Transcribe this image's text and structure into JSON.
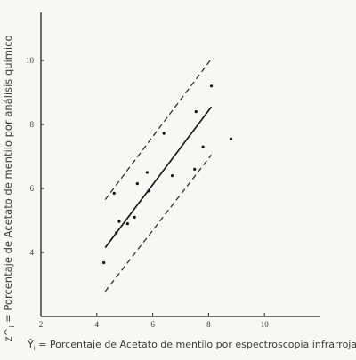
{
  "chart_data": {
    "type": "scatter",
    "title": "",
    "xlabel": {
      "prefix": "Ŷ",
      "subscript": "i",
      "text": "= Porcentaje de Acetato de mentilo por espectroscopia infrarroja"
    },
    "ylabel": {
      "prefix": "z^",
      "subscript": "i",
      "text": "= Porcentaje de Acetato de mentilo por análisis químico"
    },
    "xlim": [
      2,
      12
    ],
    "ylim": [
      2,
      11.5
    ],
    "xticks": [
      2,
      4,
      6,
      8,
      10
    ],
    "yticks": [
      4,
      6,
      8,
      10
    ],
    "xticklabels": [
      "2",
      "4",
      "6",
      "8",
      "10"
    ],
    "yticklabels": [
      "4",
      "6",
      "8",
      "10"
    ],
    "grid": false,
    "points": [
      {
        "x": 4.25,
        "y": 3.68
      },
      {
        "x": 4.62,
        "y": 5.85
      },
      {
        "x": 4.7,
        "y": 4.62
      },
      {
        "x": 4.8,
        "y": 4.97
      },
      {
        "x": 5.1,
        "y": 4.9
      },
      {
        "x": 5.35,
        "y": 5.1
      },
      {
        "x": 5.45,
        "y": 6.15
      },
      {
        "x": 5.8,
        "y": 6.5
      },
      {
        "x": 5.85,
        "y": 5.92
      },
      {
        "x": 6.4,
        "y": 7.72
      },
      {
        "x": 6.7,
        "y": 6.4
      },
      {
        "x": 7.5,
        "y": 6.6
      },
      {
        "x": 7.55,
        "y": 8.4
      },
      {
        "x": 7.8,
        "y": 7.3
      },
      {
        "x": 8.1,
        "y": 9.2
      },
      {
        "x": 8.8,
        "y": 7.55
      }
    ],
    "fit_line": {
      "x": [
        4.3,
        8.1
      ],
      "y": [
        4.15,
        8.55
      ]
    },
    "upper_band": {
      "x": [
        4.3,
        8.1
      ],
      "y": [
        5.65,
        10.05
      ]
    },
    "lower_band": {
      "x": [
        4.3,
        8.1
      ],
      "y": [
        2.78,
        7.05
      ]
    }
  }
}
